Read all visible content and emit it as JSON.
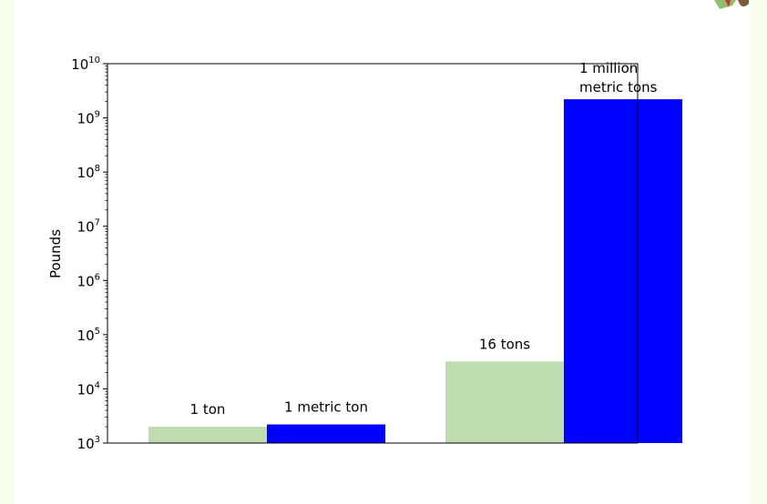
{
  "chart_data": {
    "type": "bar",
    "title": "",
    "xlabel": "",
    "ylabel": "Pounds",
    "yscale": "log",
    "ylim": [
      1000,
      10000000000
    ],
    "grid": false,
    "legend": "none",
    "y_ticks": [
      {
        "value": 1000,
        "base": "10",
        "exp": "3"
      },
      {
        "value": 10000,
        "base": "10",
        "exp": "4"
      },
      {
        "value": 100000,
        "base": "10",
        "exp": "5"
      },
      {
        "value": 1000000,
        "base": "10",
        "exp": "6"
      },
      {
        "value": 10000000,
        "base": "10",
        "exp": "7"
      },
      {
        "value": 100000000,
        "base": "10",
        "exp": "8"
      },
      {
        "value": 1000000000,
        "base": "10",
        "exp": "9"
      },
      {
        "value": 10000000000,
        "base": "10",
        "exp": "10"
      }
    ],
    "groups": 2,
    "bars": [
      {
        "group": 0,
        "slot": 0,
        "value": 2000,
        "label": [
          "1 ton"
        ],
        "color": "#bfdcb0"
      },
      {
        "group": 0,
        "slot": 1,
        "value": 2204.6,
        "label": [
          "1 metric ton"
        ],
        "color": "#0000ff"
      },
      {
        "group": 1,
        "slot": 0,
        "value": 32000,
        "label": [
          "16 tons"
        ],
        "color": "#bfdcb0"
      },
      {
        "group": 1,
        "slot": 1,
        "value": 2204600000,
        "label": [
          "1 million",
          "metric tons"
        ],
        "color": "#0000ff"
      }
    ]
  },
  "colors": {
    "page_background": "#f7fdea",
    "panel_background": "#ffffff",
    "bar_light": "#bfdcb0",
    "bar_dark": "#0000ff"
  },
  "decor": {
    "corner_icon": "partial-illustration-icon"
  }
}
